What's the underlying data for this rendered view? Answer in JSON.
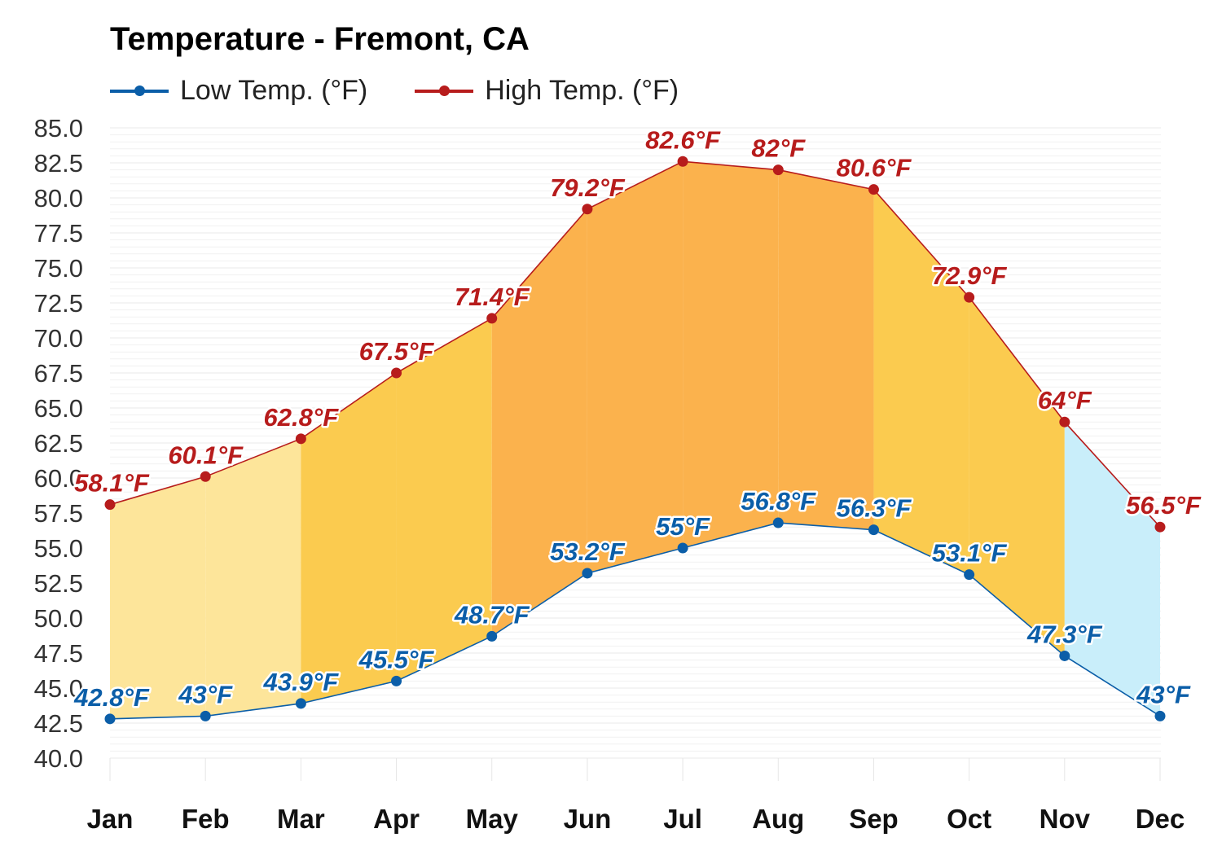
{
  "title": "Temperature - Fremont, CA",
  "legend": {
    "low_label": "Low Temp. (°F)",
    "high_label": "High Temp. (°F)"
  },
  "colors": {
    "low": "#0b5ea8",
    "high": "#b71c1c",
    "cool_band": "#c9eefa",
    "mild_band": "#fde59a",
    "warm_band": "#fbcb4f",
    "hot_band": "#fbb24d",
    "grid": "#e8e8e8"
  },
  "chart_data": {
    "type": "area",
    "categories": [
      "Jan",
      "Feb",
      "Mar",
      "Apr",
      "May",
      "Jun",
      "Jul",
      "Aug",
      "Sep",
      "Oct",
      "Nov",
      "Dec"
    ],
    "series": [
      {
        "name": "Low Temp. (°F)",
        "values": [
          42.8,
          43,
          43.9,
          45.5,
          48.7,
          53.2,
          55,
          56.8,
          56.3,
          53.1,
          47.3,
          43
        ],
        "labels": [
          "42.8°F",
          "43°F",
          "43.9°F",
          "45.5°F",
          "48.7°F",
          "53.2°F",
          "55°F",
          "56.8°F",
          "56.3°F",
          "53.1°F",
          "47.3°F",
          "43°F"
        ]
      },
      {
        "name": "High Temp. (°F)",
        "values": [
          58.1,
          60.1,
          62.8,
          67.5,
          71.4,
          79.2,
          82.6,
          82,
          80.6,
          72.9,
          64,
          56.5
        ],
        "labels": [
          "58.1°F",
          "60.1°F",
          "62.8°F",
          "67.5°F",
          "71.4°F",
          "79.2°F",
          "82.6°F",
          "82°F",
          "80.6°F",
          "72.9°F",
          "64°F",
          "56.5°F"
        ]
      }
    ],
    "band_colors": [
      "mild",
      "mild",
      "warm",
      "warm",
      "hot",
      "hot",
      "hot",
      "hot",
      "warm",
      "warm",
      "cool",
      "cool"
    ],
    "ylim": [
      40,
      85
    ],
    "yticks": [
      "40.0",
      "42.5",
      "45.0",
      "47.5",
      "50.0",
      "52.5",
      "55.0",
      "57.5",
      "60.0",
      "62.5",
      "65.0",
      "67.5",
      "70.0",
      "72.5",
      "75.0",
      "77.5",
      "80.0",
      "82.5",
      "85.0"
    ],
    "grid": true,
    "legend_position": "top-left"
  }
}
